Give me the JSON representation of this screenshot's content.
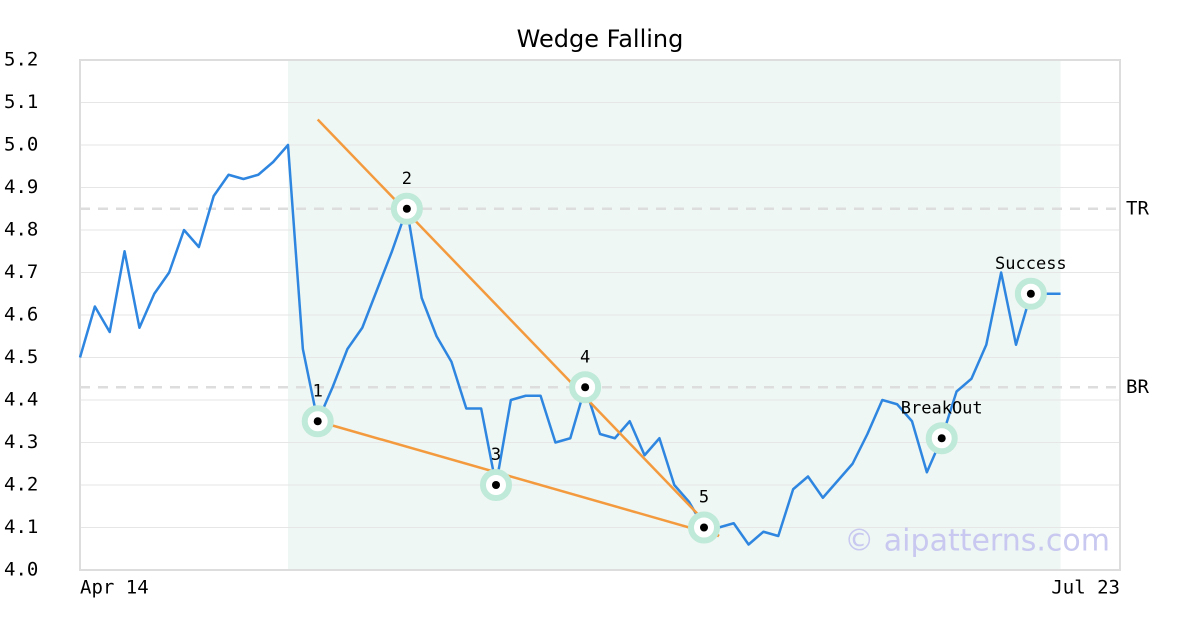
{
  "chart_data": {
    "type": "line",
    "title": "Wedge Falling",
    "watermark": "© aipatterns.com",
    "categories": [
      "Apr 14",
      null,
      null,
      null,
      null,
      null,
      null,
      null,
      null,
      null,
      null,
      null,
      null,
      null,
      null,
      null,
      null,
      null,
      null,
      null,
      null,
      null,
      null,
      null,
      null,
      null,
      null,
      null,
      null,
      null,
      null,
      null,
      null,
      null,
      null,
      null,
      null,
      null,
      null,
      null,
      null,
      null,
      null,
      null,
      null,
      null,
      null,
      null,
      null,
      null,
      null,
      null,
      null,
      null,
      null,
      null,
      null,
      null,
      null,
      null,
      null,
      null,
      null,
      null,
      null,
      null,
      null,
      null,
      null,
      null,
      "Jul 23"
    ],
    "values": [
      4.5,
      4.62,
      4.56,
      4.75,
      4.57,
      4.65,
      4.7,
      4.8,
      4.76,
      4.88,
      4.93,
      4.92,
      4.93,
      4.96,
      5.0,
      4.52,
      4.35,
      4.43,
      4.52,
      4.57,
      4.66,
      4.75,
      4.85,
      4.64,
      4.55,
      4.49,
      4.38,
      4.38,
      4.2,
      4.4,
      4.41,
      4.41,
      4.3,
      4.31,
      4.43,
      4.32,
      4.31,
      4.35,
      4.27,
      4.31,
      4.2,
      4.16,
      4.1,
      4.1,
      4.11,
      4.06,
      4.09,
      4.08,
      4.19,
      4.22,
      4.17,
      4.21,
      4.25,
      4.32,
      4.4,
      4.39,
      4.35,
      4.23,
      4.31,
      4.42,
      4.45,
      4.53,
      4.7,
      4.53,
      4.65,
      4.65,
      4.65,
      null,
      null,
      null,
      null
    ],
    "color": "#2f86e0",
    "ylim": [
      4.0,
      5.2
    ],
    "yticks": [
      {
        "value": 4.0,
        "label": "4.0"
      },
      4.1,
      4.2,
      4.3,
      4.4,
      4.5,
      4.6,
      4.7,
      4.8,
      4.9,
      {
        "value": 5.0,
        "label": "5.0"
      },
      5.1,
      5.2
    ],
    "grid": true,
    "highlight": {
      "from": 14,
      "to": 66,
      "color": "#eef7f3"
    },
    "reference_lines": [
      {
        "label": "TR",
        "value": 4.85
      },
      {
        "label": "BR",
        "value": 4.43
      }
    ],
    "trend_lines": {
      "color": "#f49a3e",
      "lines": [
        {
          "x": [
            16,
            43
          ],
          "y": [
            5.06,
            4.08
          ]
        },
        {
          "x": [
            16,
            43
          ],
          "y": [
            4.35,
            4.08
          ]
        }
      ]
    },
    "markers": [
      {
        "label": "1",
        "x": 16,
        "y": 4.35
      },
      {
        "label": "2",
        "x": 22,
        "y": 4.85
      },
      {
        "label": "3",
        "x": 28,
        "y": 4.2
      },
      {
        "label": "4",
        "x": 34,
        "y": 4.43
      },
      {
        "label": "5",
        "x": 42,
        "y": 4.1
      },
      {
        "label": "BreakOut",
        "x": 58,
        "y": 4.31
      },
      {
        "label": "Success",
        "x": 64,
        "y": 4.65
      }
    ]
  }
}
